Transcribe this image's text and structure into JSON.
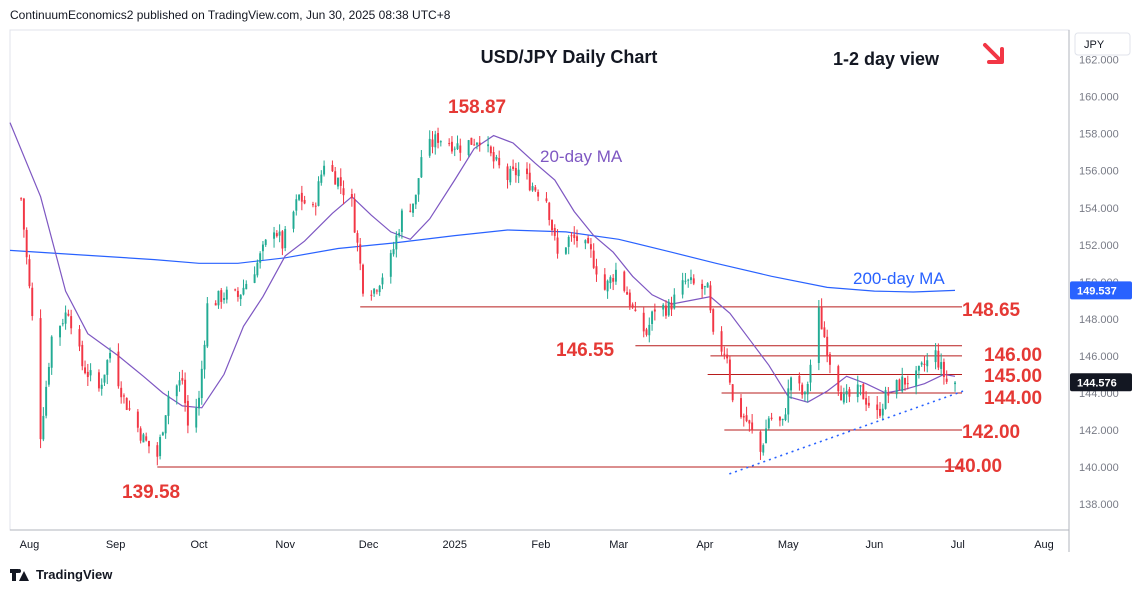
{
  "header": {
    "publisher_line": "ContinuumEconomics2 published on TradingView.com, Jun 30, 2025 08:38 UTC+8"
  },
  "footer": {
    "brand": "TradingView"
  },
  "view": {
    "label": "1-2 day view",
    "arrow_icon": "down-right-arrow-icon"
  },
  "colors": {
    "up": "#22ab94",
    "down": "#f23645",
    "ma20": "#7e57c2",
    "ma200": "#2962ff",
    "level": "#e53935",
    "price_tag": "#131722",
    "ma200_tag": "#2962ff"
  },
  "chart_data": {
    "type": "candlestick",
    "title": "USD/JPY Daily Chart",
    "currency": "JPY",
    "ylim": [
      136.6,
      163.6
    ],
    "y_ticks": [
      "138.000",
      "140.000",
      "142.000",
      "144.000",
      "146.000",
      "148.000",
      "150.000",
      "152.000",
      "154.000",
      "156.000",
      "158.000",
      "160.000",
      "162.000"
    ],
    "x_ticks": [
      "Aug",
      "Sep",
      "Oct",
      "Nov",
      "Dec",
      "2025",
      "Feb",
      "Mar",
      "Apr",
      "May",
      "Jun",
      "Jul",
      "Aug"
    ],
    "x_range": [
      "2024-07-25",
      "2025-08-10"
    ],
    "last_price": {
      "value": 144.576,
      "label": "144.576"
    },
    "ma200_value": {
      "value": 149.537,
      "label": "149.537"
    },
    "series_labels": {
      "ma20": "20-day MA",
      "ma200": "200-day MA"
    },
    "levels": [
      {
        "value": 148.65,
        "label": "148.65",
        "from": "2024-11-28"
      },
      {
        "value": 146.55,
        "label": "146.55",
        "from": "2025-03-07"
      },
      {
        "value": 146.0,
        "label": "146.00",
        "from": "2025-04-03"
      },
      {
        "value": 145.0,
        "label": "145.00",
        "from": "2025-04-02"
      },
      {
        "value": 144.0,
        "label": "144.00",
        "from": "2025-04-07"
      },
      {
        "value": 142.0,
        "label": "142.00",
        "from": "2025-04-08"
      },
      {
        "value": 140.0,
        "label": "140.00",
        "from": "2024-09-16"
      }
    ],
    "annotations": [
      {
        "label": "158.87",
        "date": "2025-01-10",
        "value": 158.87
      },
      {
        "label": "139.58",
        "date": "2024-09-16",
        "value": 139.58
      }
    ],
    "trendline": {
      "from": {
        "date": "2025-04-17",
        "value": 139.9
      },
      "to": {
        "date": "2025-06-30",
        "value": 144.1
      }
    },
    "close_path": [
      [
        "2024-07-29",
        154.5
      ],
      [
        "2024-08-02",
        148.0
      ],
      [
        "2024-08-05",
        141.8
      ],
      [
        "2024-08-09",
        147.0
      ],
      [
        "2024-08-15",
        148.5
      ],
      [
        "2024-08-20",
        145.5
      ],
      [
        "2024-08-26",
        144.2
      ],
      [
        "2024-08-30",
        146.2
      ],
      [
        "2024-09-04",
        143.7
      ],
      [
        "2024-09-11",
        141.5
      ],
      [
        "2024-09-16",
        140.6
      ],
      [
        "2024-09-20",
        143.9
      ],
      [
        "2024-09-25",
        144.7
      ],
      [
        "2024-09-27",
        142.2
      ],
      [
        "2024-10-01",
        143.6
      ],
      [
        "2024-10-04",
        148.7
      ],
      [
        "2024-10-10",
        149.3
      ],
      [
        "2024-10-15",
        149.2
      ],
      [
        "2024-10-22",
        151.0
      ],
      [
        "2024-10-28",
        153.0
      ],
      [
        "2024-10-31",
        152.0
      ],
      [
        "2024-11-06",
        154.6
      ],
      [
        "2024-11-11",
        153.8
      ],
      [
        "2024-11-15",
        156.5
      ],
      [
        "2024-11-20",
        155.5
      ],
      [
        "2024-11-25",
        154.2
      ],
      [
        "2024-11-29",
        149.8
      ],
      [
        "2024-12-03",
        149.6
      ],
      [
        "2024-12-09",
        151.2
      ],
      [
        "2024-12-13",
        153.6
      ],
      [
        "2024-12-18",
        154.5
      ],
      [
        "2024-12-20",
        156.8
      ],
      [
        "2024-12-26",
        157.8
      ],
      [
        "2025-01-03",
        157.3
      ],
      [
        "2025-01-10",
        157.8
      ],
      [
        "2025-01-15",
        156.5
      ],
      [
        "2025-01-20",
        155.6
      ],
      [
        "2025-01-24",
        156.0
      ],
      [
        "2025-01-29",
        155.2
      ],
      [
        "2025-02-03",
        154.5
      ],
      [
        "2025-02-07",
        151.4
      ],
      [
        "2025-02-11",
        152.3
      ],
      [
        "2025-02-14",
        152.3
      ],
      [
        "2025-02-19",
        151.5
      ],
      [
        "2025-02-24",
        149.6
      ],
      [
        "2025-02-28",
        150.6
      ],
      [
        "2025-03-04",
        149.4
      ],
      [
        "2025-03-07",
        148.0
      ],
      [
        "2025-03-11",
        147.2
      ],
      [
        "2025-03-14",
        148.6
      ],
      [
        "2025-03-19",
        148.6
      ],
      [
        "2025-03-25",
        150.0
      ],
      [
        "2025-03-28",
        149.8
      ],
      [
        "2025-04-02",
        149.5
      ],
      [
        "2025-04-04",
        146.9
      ],
      [
        "2025-04-09",
        146.1
      ],
      [
        "2025-04-11",
        143.5
      ],
      [
        "2025-04-16",
        142.5
      ],
      [
        "2025-04-21",
        140.8
      ],
      [
        "2025-04-24",
        142.7
      ],
      [
        "2025-04-29",
        142.3
      ],
      [
        "2025-05-02",
        144.9
      ],
      [
        "2025-05-07",
        143.7
      ],
      [
        "2025-05-12",
        148.3
      ],
      [
        "2025-05-16",
        145.8
      ],
      [
        "2025-05-21",
        143.6
      ],
      [
        "2025-05-27",
        144.1
      ],
      [
        "2025-06-02",
        142.8
      ],
      [
        "2025-06-05",
        143.8
      ],
      [
        "2025-06-11",
        144.6
      ],
      [
        "2025-06-16",
        144.8
      ],
      [
        "2025-06-19",
        145.5
      ],
      [
        "2025-06-23",
        146.1
      ],
      [
        "2025-06-25",
        145.3
      ],
      [
        "2025-06-27",
        144.6
      ],
      [
        "2025-06-30",
        144.576
      ]
    ],
    "ma20_path": [
      [
        "2024-07-25",
        158.6
      ],
      [
        "2024-08-05",
        154.6
      ],
      [
        "2024-08-14",
        149.5
      ],
      [
        "2024-08-22",
        147.2
      ],
      [
        "2024-09-02",
        146.0
      ],
      [
        "2024-09-11",
        144.9
      ],
      [
        "2024-09-18",
        144.0
      ],
      [
        "2024-09-25",
        143.3
      ],
      [
        "2024-10-02",
        143.2
      ],
      [
        "2024-10-10",
        145.0
      ],
      [
        "2024-10-17",
        147.6
      ],
      [
        "2024-10-24",
        149.2
      ],
      [
        "2024-11-01",
        151.4
      ],
      [
        "2024-11-08",
        152.2
      ],
      [
        "2024-11-18",
        153.7
      ],
      [
        "2024-11-25",
        154.6
      ],
      [
        "2024-12-02",
        153.6
      ],
      [
        "2024-12-09",
        152.7
      ],
      [
        "2024-12-16",
        152.3
      ],
      [
        "2024-12-23",
        153.4
      ],
      [
        "2025-01-01",
        155.5
      ],
      [
        "2025-01-08",
        157.2
      ],
      [
        "2025-01-15",
        157.9
      ],
      [
        "2025-01-22",
        157.5
      ],
      [
        "2025-01-30",
        156.4
      ],
      [
        "2025-02-06",
        155.5
      ],
      [
        "2025-02-13",
        153.8
      ],
      [
        "2025-02-20",
        152.5
      ],
      [
        "2025-02-27",
        151.6
      ],
      [
        "2025-03-06",
        150.3
      ],
      [
        "2025-03-13",
        149.3
      ],
      [
        "2025-03-20",
        148.8
      ],
      [
        "2025-03-27",
        149.0
      ],
      [
        "2025-04-03",
        149.2
      ],
      [
        "2025-04-10",
        148.3
      ],
      [
        "2025-04-17",
        146.9
      ],
      [
        "2025-04-24",
        145.5
      ],
      [
        "2025-05-01",
        143.8
      ],
      [
        "2025-05-08",
        143.5
      ],
      [
        "2025-05-15",
        144.1
      ],
      [
        "2025-05-22",
        144.9
      ],
      [
        "2025-05-29",
        144.5
      ],
      [
        "2025-06-05",
        144.0
      ],
      [
        "2025-06-12",
        144.2
      ],
      [
        "2025-06-19",
        144.5
      ],
      [
        "2025-06-26",
        145.0
      ],
      [
        "2025-06-30",
        144.9
      ]
    ],
    "ma200_path": [
      [
        "2024-07-25",
        151.7
      ],
      [
        "2024-08-15",
        151.5
      ],
      [
        "2024-09-15",
        151.2
      ],
      [
        "2024-10-01",
        151.0
      ],
      [
        "2024-10-15",
        151.0
      ],
      [
        "2024-11-01",
        151.3
      ],
      [
        "2024-11-20",
        151.8
      ],
      [
        "2024-12-10",
        152.1
      ],
      [
        "2025-01-01",
        152.5
      ],
      [
        "2025-01-20",
        152.8
      ],
      [
        "2025-02-10",
        152.7
      ],
      [
        "2025-03-01",
        152.3
      ],
      [
        "2025-03-20",
        151.6
      ],
      [
        "2025-04-05",
        151.0
      ],
      [
        "2025-04-25",
        150.3
      ],
      [
        "2025-05-15",
        149.7
      ],
      [
        "2025-06-01",
        149.5
      ],
      [
        "2025-06-15",
        149.45
      ],
      [
        "2025-06-30",
        149.537
      ]
    ]
  }
}
